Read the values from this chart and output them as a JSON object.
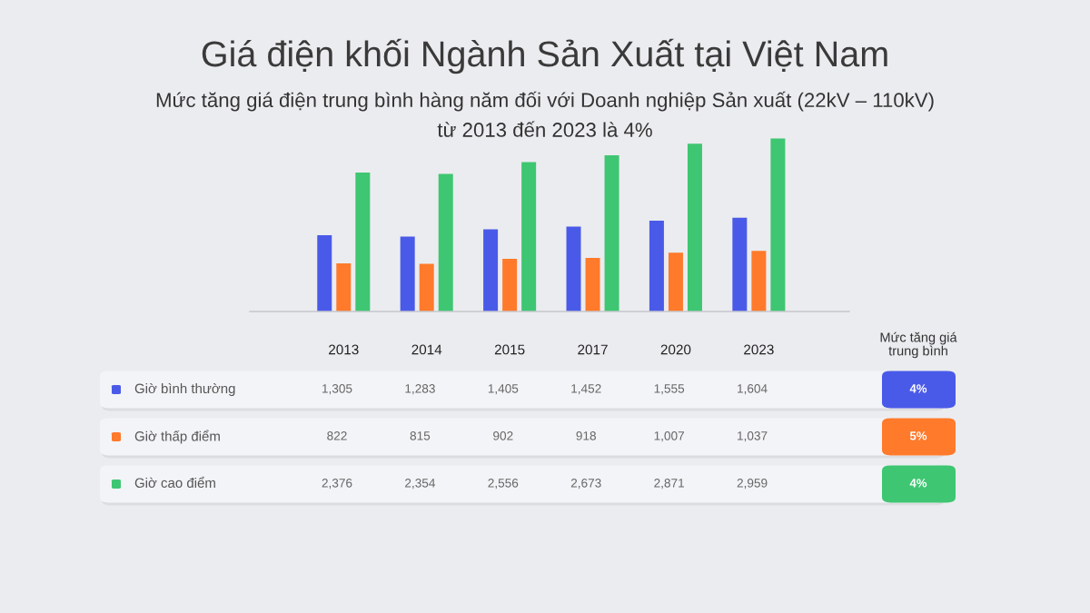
{
  "chart_data": {
    "type": "bar",
    "title": "Giá điện khối Ngành Sản Xuất tại Việt Nam",
    "subtitle": "Mức tăng giá điện trung bình hàng năm đối với Doanh nghiệp Sản xuất (22kV – 110kV)\ntừ 2013 đến 2023 là 4%",
    "categories": [
      "2013",
      "2014",
      "2015",
      "2017",
      "2020",
      "2023"
    ],
    "series": [
      {
        "name": "Giờ bình thường",
        "color": "#4a5ae8",
        "values": [
          1305,
          1283,
          1405,
          1452,
          1555,
          1604
        ],
        "value_labels": [
          "1,305",
          "1,283",
          "1,405",
          "1,452",
          "1,555",
          "1,604"
        ]
      },
      {
        "name": "Giờ thấp điểm",
        "color": "#ff7a2b",
        "values": [
          822,
          815,
          902,
          918,
          1007,
          1037
        ],
        "value_labels": [
          "822",
          "815",
          "902",
          "918",
          "1,007",
          "1,037"
        ]
      },
      {
        "name": "Giờ cao điểm",
        "color": "#3ec672",
        "values": [
          2376,
          2354,
          2556,
          2673,
          2871,
          2959
        ],
        "value_labels": [
          "2,376",
          "2,354",
          "2,556",
          "2,673",
          "2,871",
          "2,959"
        ]
      }
    ],
    "annotations": [
      "Mức tăng giá\ntrung bình",
      "4%",
      "5%",
      "4%"
    ],
    "legend": "bottom",
    "tick_labels": "x"
  }
}
